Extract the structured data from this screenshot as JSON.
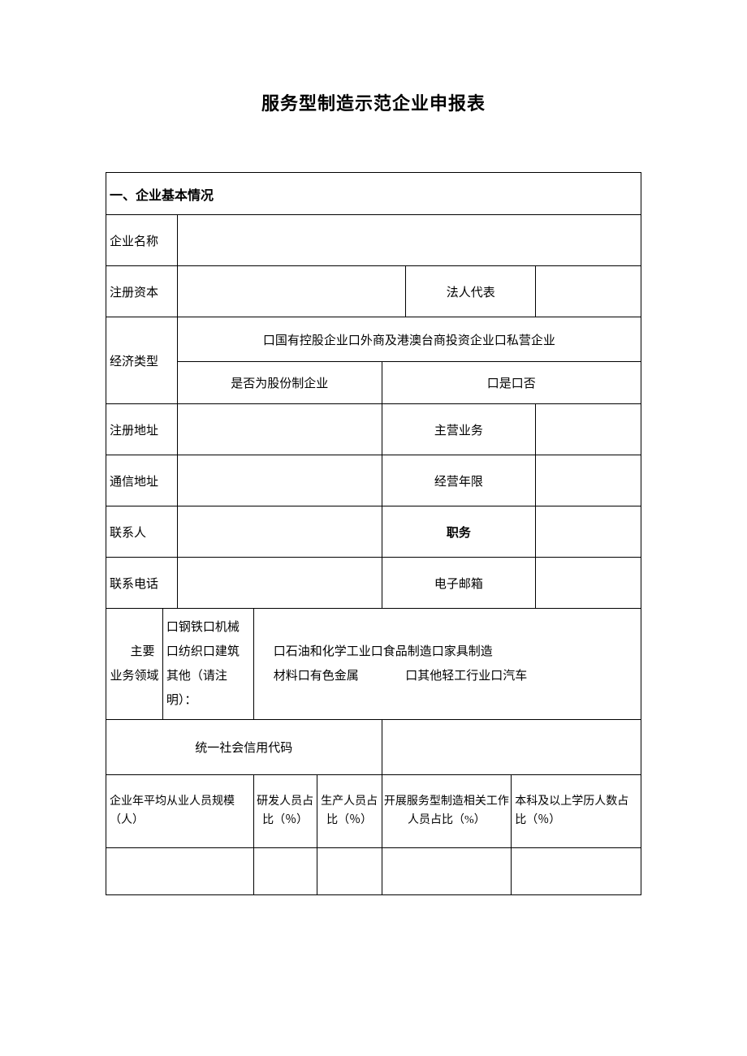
{
  "doc_title": "服务型制造示范企业申报表",
  "section1_header": "一、企业基本情况",
  "labels": {
    "company_name": "企业名称",
    "registered_capital": "注册资本",
    "legal_rep": "法人代表",
    "economic_type": "经济类型",
    "econ_options": "口国有控股企业口外商及港澳台商投资企业口私营企业",
    "shareholding_q": "是否为股份制企业",
    "shareholding_opts": "口是口否",
    "registered_address": "注册地址",
    "main_business": "主营业务",
    "mailing_address": "通信地址",
    "operating_years": "经营年限",
    "contact_person": "联系人",
    "position": "职务",
    "phone": "联系电话",
    "email": "电子邮箱",
    "main_field_l1": "主要",
    "main_field_l2": "业务领域",
    "biz_left": "口钢铁口机械\n口纺织口建筑\n其他（请注明）：",
    "biz_right_l1": "口石油和化学工业口食品制造口家具制造",
    "biz_right_l2": "材料口有色金属",
    "biz_right_l3": "口其他轻工行业口汽车",
    "social_credit": "统一社会信用代码"
  },
  "stats": {
    "col1": "企业年平均从业人员规模（人）",
    "col2": "研发人员占比（％）",
    "col3": "生产人员占比（％）",
    "col4": "开展服务型制造相关工作人员占比（%）",
    "col5": "本科及以上学历人数占比（％）"
  },
  "values": {
    "company_name": "",
    "registered_capital": "",
    "legal_rep": "",
    "registered_address": "",
    "main_business": "",
    "mailing_address": "",
    "operating_years": "",
    "contact_person": "",
    "position": "",
    "phone": "",
    "email": "",
    "social_credit": "",
    "stat1": "",
    "stat2": "",
    "stat3": "",
    "stat4": "",
    "stat5": ""
  },
  "style": {
    "border_color": "#000000",
    "background": "#ffffff",
    "body_fontsize": 15,
    "title_fontsize": 22,
    "stats_fontsize": 14
  }
}
